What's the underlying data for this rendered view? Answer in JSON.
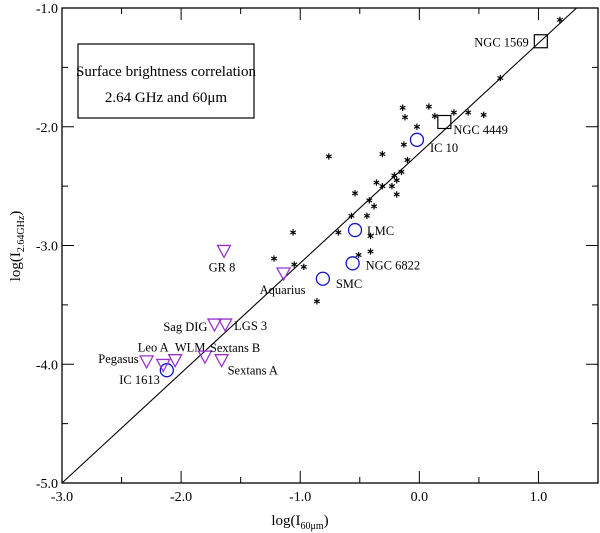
{
  "chart_data": {
    "type": "scatter",
    "title": "",
    "xlabel": "log(I60μm)",
    "xlabel_main": "log(I",
    "xlabel_sub": "60μm",
    "xlabel_close": ")",
    "ylabel_main": "log(I",
    "ylabel_sub": "2.64GHz",
    "ylabel_close": ")",
    "xlim": [
      -3.0,
      1.5
    ],
    "ylim": [
      -5.0,
      -1.0
    ],
    "xticks": [
      {
        "v": -3.0,
        "label": "-3.0"
      },
      {
        "v": -2.0,
        "label": "-2.0"
      },
      {
        "v": -1.0,
        "label": "-1.0"
      },
      {
        "v": 0.0,
        "label": "0.0"
      },
      {
        "v": 1.0,
        "label": "1.0"
      }
    ],
    "yticks": [
      {
        "v": -5.0,
        "label": "-5.0"
      },
      {
        "v": -4.0,
        "label": "-4.0"
      },
      {
        "v": -3.0,
        "label": "-3.0"
      },
      {
        "v": -2.0,
        "label": "-2.0"
      },
      {
        "v": -1.0,
        "label": "-1.0"
      }
    ],
    "annotation": {
      "line1": "Surface brightness correlation",
      "line2": "2.64 GHz and 60μm"
    },
    "fit_line": {
      "x": [
        -3.0,
        1.32
      ],
      "y": [
        -5.0,
        -1.0
      ]
    },
    "colors": {
      "triangle": "#9933cc",
      "circle": "#1111cc",
      "axis": "#000000"
    },
    "series": [
      {
        "name": "galaxies",
        "marker": "asterisk",
        "points": [
          [
            1.18,
            -1.1
          ],
          [
            0.68,
            -1.59
          ],
          [
            0.29,
            -1.88
          ],
          [
            0.41,
            -1.88
          ],
          [
            0.54,
            -1.9
          ],
          [
            0.08,
            -1.83
          ],
          [
            -0.14,
            -1.84
          ],
          [
            -0.02,
            -2.0
          ],
          [
            0.13,
            -1.91
          ],
          [
            -0.12,
            -1.92
          ],
          [
            -0.31,
            -2.23
          ],
          [
            -0.76,
            -2.25
          ],
          [
            -0.13,
            -2.15
          ],
          [
            -0.1,
            -2.28
          ],
          [
            -0.15,
            -2.38
          ],
          [
            -0.21,
            -2.41
          ],
          [
            -0.19,
            -2.45
          ],
          [
            -0.23,
            -2.5
          ],
          [
            -0.31,
            -2.5
          ],
          [
            -0.36,
            -2.47
          ],
          [
            -0.19,
            -2.57
          ],
          [
            -0.54,
            -2.56
          ],
          [
            -0.42,
            -2.62
          ],
          [
            -0.38,
            -2.67
          ],
          [
            -0.57,
            -2.75
          ],
          [
            -0.44,
            -2.75
          ],
          [
            -0.41,
            -2.92
          ],
          [
            -1.06,
            -2.89
          ],
          [
            -0.68,
            -2.89
          ],
          [
            -1.22,
            -3.11
          ],
          [
            -1.05,
            -3.16
          ],
          [
            -0.97,
            -3.18
          ],
          [
            -0.86,
            -3.47
          ],
          [
            -0.41,
            -3.05
          ],
          [
            -0.51,
            -3.08
          ]
        ]
      },
      {
        "name": "squares",
        "marker": "square",
        "points": [
          {
            "name": "NGC 1569",
            "x": 1.02,
            "y": -1.28
          },
          {
            "name": "NGC 4449",
            "x": 0.21,
            "y": -1.96
          }
        ]
      },
      {
        "name": "circles",
        "marker": "circle",
        "points": [
          {
            "name": "IC 10",
            "x": -0.02,
            "y": -2.11
          },
          {
            "name": "LMC",
            "x": -0.54,
            "y": -2.87
          },
          {
            "name": "NGC 6822",
            "x": -0.56,
            "y": -3.15
          },
          {
            "name": "SMC",
            "x": -0.81,
            "y": -3.28
          },
          {
            "name": "IC 1613",
            "x": -2.12,
            "y": -4.05
          }
        ]
      },
      {
        "name": "triangles",
        "marker": "triangle-down",
        "points": [
          {
            "name": "GR 8",
            "x": -1.64,
            "y": -3.05
          },
          {
            "name": "Aquarius",
            "x": -1.14,
            "y": -3.24
          },
          {
            "name": "Sag DIG",
            "x": -1.72,
            "y": -3.67
          },
          {
            "name": "LGS 3",
            "x": -1.63,
            "y": -3.67
          },
          {
            "name": "Pegasus",
            "x": -2.29,
            "y": -3.98
          },
          {
            "name": "Leo A",
            "x": -2.15,
            "y": -4.01
          },
          {
            "name": "WLM",
            "x": -2.05,
            "y": -3.97
          },
          {
            "name": "Sextans B",
            "x": -1.8,
            "y": -3.94
          },
          {
            "name": "Sextans A",
            "x": -1.66,
            "y": -3.97
          }
        ]
      }
    ]
  }
}
